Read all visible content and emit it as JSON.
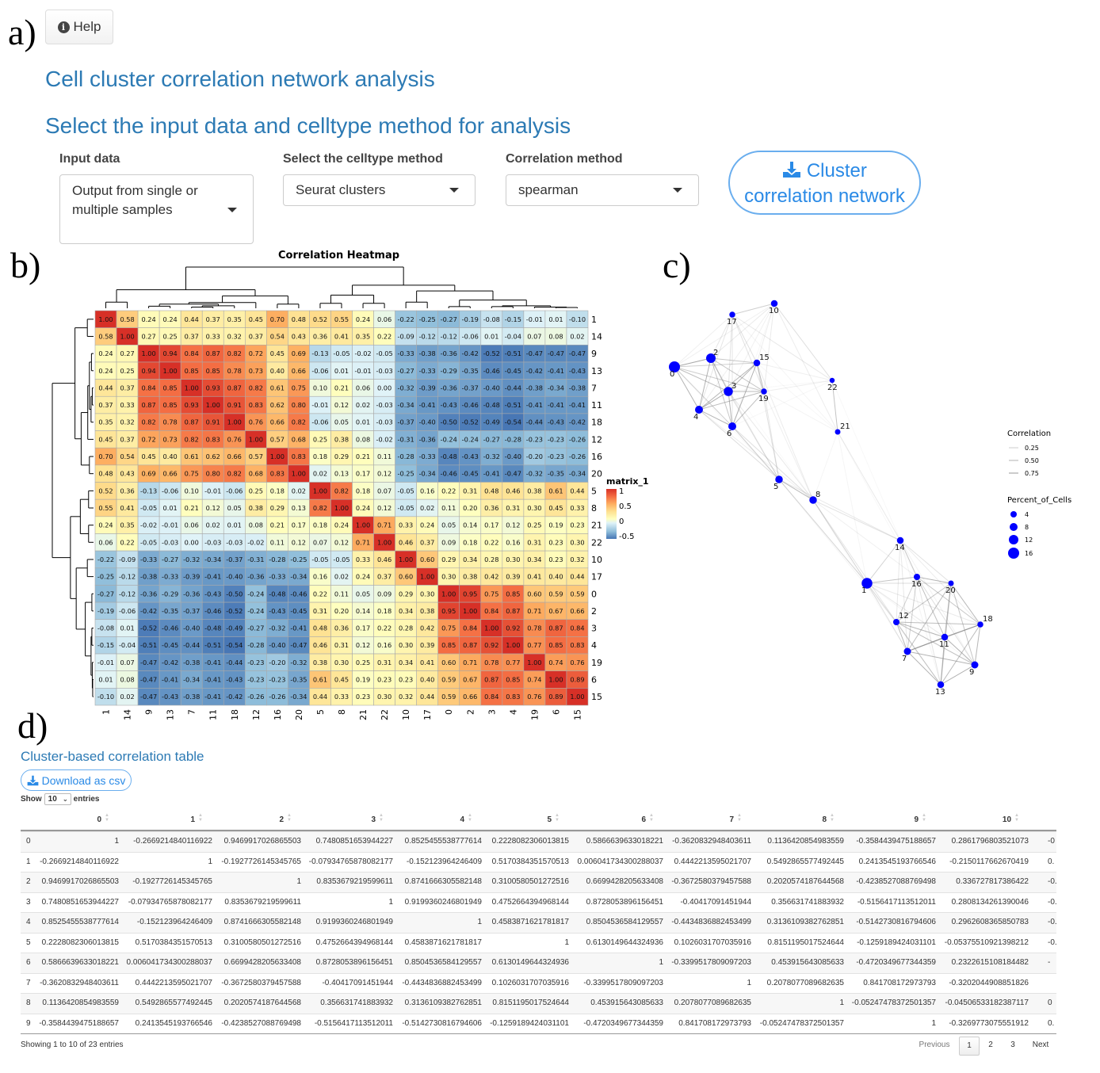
{
  "panel_labels": {
    "a": "a)",
    "b": "b)",
    "c": "c)",
    "d": "d)"
  },
  "help_button": {
    "label": "Help",
    "icon": "info-circle-icon"
  },
  "page_title": "Cell cluster correlation network analysis",
  "section_title": "Select the input data and celltype method for analysis",
  "form": {
    "input_data": {
      "label": "Input data",
      "value_line1": "Output from single or",
      "value_line2": "multiple samples"
    },
    "celltype_method": {
      "label": "Select the celltype method",
      "value": "Seurat clusters"
    },
    "correlation_method": {
      "label": "Correlation method",
      "value": "spearman"
    },
    "run_button": {
      "label_line1": "Cluster",
      "label_line2": "correlation network",
      "icon": "download-icon"
    }
  },
  "colors": {
    "accent": "#2a8ae6",
    "heading": "#2c7ab4",
    "node": "#0000ff",
    "edge": "#999999",
    "heat_high": "#d73027",
    "heat_mid": "#ffffbf",
    "heat_low": "#4575b4"
  },
  "chart_data": [
    {
      "type": "heatmap",
      "title": "Correlation Heatmap",
      "legend_title": "matrix_1",
      "legend_ticks": [
        "1",
        "0.5",
        "0",
        "-0.5"
      ],
      "color_range": [
        -0.5,
        1
      ],
      "labels": [
        "1",
        "14",
        "9",
        "13",
        "7",
        "11",
        "18",
        "12",
        "16",
        "20",
        "5",
        "8",
        "21",
        "22",
        "10",
        "17",
        "0",
        "2",
        "3",
        "4",
        "19",
        "6",
        "15"
      ],
      "values": [
        [
          1.0,
          0.58,
          0.24,
          0.24,
          0.44,
          0.37,
          0.35,
          0.45,
          0.7,
          0.48,
          0.52,
          0.55,
          0.24,
          0.06,
          -0.22,
          -0.25,
          -0.27,
          -0.19,
          -0.08,
          -0.15,
          -0.01,
          0.01,
          -0.1
        ],
        [
          0.58,
          1.0,
          0.27,
          0.25,
          0.37,
          0.33,
          0.32,
          0.37,
          0.54,
          0.43,
          0.36,
          0.41,
          0.35,
          0.22,
          -0.09,
          -0.12,
          -0.12,
          -0.06,
          0.01,
          -0.04,
          0.07,
          0.08,
          0.02
        ],
        [
          0.24,
          0.27,
          1.0,
          0.94,
          0.84,
          0.87,
          0.82,
          0.72,
          0.45,
          0.69,
          -0.13,
          -0.05,
          -0.02,
          -0.05,
          -0.33,
          -0.38,
          -0.36,
          -0.42,
          -0.52,
          -0.51,
          -0.47,
          -0.47,
          -0.47
        ],
        [
          0.24,
          0.25,
          0.94,
          1.0,
          0.85,
          0.85,
          0.78,
          0.73,
          0.4,
          0.66,
          -0.06,
          0.01,
          -0.01,
          -0.03,
          -0.27,
          -0.33,
          -0.29,
          -0.35,
          -0.46,
          -0.45,
          -0.42,
          -0.41,
          -0.43
        ],
        [
          0.44,
          0.37,
          0.84,
          0.85,
          1.0,
          0.93,
          0.87,
          0.82,
          0.61,
          0.75,
          0.1,
          0.21,
          0.06,
          -0.0,
          -0.32,
          -0.39,
          -0.36,
          -0.37,
          -0.4,
          -0.44,
          -0.38,
          -0.34,
          -0.38
        ],
        [
          0.37,
          0.33,
          0.87,
          0.85,
          0.93,
          1.0,
          0.91,
          0.83,
          0.62,
          0.8,
          -0.01,
          0.12,
          0.02,
          -0.03,
          -0.34,
          -0.41,
          -0.43,
          -0.46,
          -0.48,
          -0.51,
          -0.41,
          -0.41,
          -0.41
        ],
        [
          0.35,
          0.32,
          0.82,
          0.78,
          0.87,
          0.91,
          1.0,
          0.76,
          0.66,
          0.82,
          -0.06,
          0.05,
          0.01,
          -0.03,
          -0.37,
          -0.4,
          -0.5,
          -0.52,
          -0.49,
          -0.54,
          -0.44,
          -0.43,
          -0.42
        ],
        [
          0.45,
          0.37,
          0.72,
          0.73,
          0.82,
          0.83,
          0.76,
          1.0,
          0.57,
          0.68,
          0.25,
          0.38,
          0.08,
          -0.02,
          -0.31,
          -0.36,
          -0.24,
          -0.24,
          -0.27,
          -0.28,
          -0.23,
          -0.23,
          -0.26
        ],
        [
          0.7,
          0.54,
          0.45,
          0.4,
          0.61,
          0.62,
          0.66,
          0.57,
          1.0,
          0.83,
          0.18,
          0.29,
          0.21,
          0.11,
          -0.28,
          -0.33,
          -0.48,
          -0.43,
          -0.32,
          -0.4,
          -0.2,
          -0.23,
          -0.26
        ],
        [
          0.48,
          0.43,
          0.69,
          0.66,
          0.75,
          0.8,
          0.82,
          0.68,
          0.83,
          1.0,
          0.02,
          0.13,
          0.17,
          0.12,
          -0.25,
          -0.34,
          -0.46,
          -0.45,
          -0.41,
          -0.47,
          -0.32,
          -0.35,
          -0.34
        ],
        [
          0.52,
          0.36,
          -0.13,
          -0.06,
          0.1,
          -0.01,
          -0.06,
          0.25,
          0.18,
          0.02,
          1.0,
          0.82,
          0.18,
          0.07,
          -0.05,
          0.16,
          0.22,
          0.31,
          0.48,
          0.46,
          0.38,
          0.61,
          0.44
        ],
        [
          0.55,
          0.41,
          -0.05,
          0.01,
          0.21,
          0.12,
          0.05,
          0.38,
          0.29,
          0.13,
          0.82,
          1.0,
          0.24,
          0.12,
          -0.05,
          0.02,
          0.11,
          0.2,
          0.36,
          0.31,
          0.3,
          0.45,
          0.33
        ],
        [
          0.24,
          0.35,
          -0.02,
          -0.01,
          0.06,
          0.02,
          0.01,
          0.08,
          0.21,
          0.17,
          0.18,
          0.24,
          1.0,
          0.71,
          0.33,
          0.24,
          0.05,
          0.14,
          0.17,
          0.12,
          0.25,
          0.19,
          0.23
        ],
        [
          0.06,
          0.22,
          -0.05,
          -0.03,
          -0.0,
          -0.03,
          -0.03,
          -0.02,
          0.11,
          0.12,
          0.07,
          0.12,
          0.71,
          1.0,
          0.46,
          0.37,
          0.09,
          0.18,
          0.22,
          0.16,
          0.31,
          0.23,
          0.3
        ],
        [
          -0.22,
          -0.09,
          -0.33,
          -0.27,
          -0.32,
          -0.34,
          -0.37,
          -0.31,
          -0.28,
          -0.25,
          -0.05,
          -0.05,
          0.33,
          0.46,
          1.0,
          0.6,
          0.29,
          0.34,
          0.28,
          0.3,
          0.34,
          0.23,
          0.32
        ],
        [
          -0.25,
          -0.12,
          -0.38,
          -0.33,
          -0.39,
          -0.41,
          -0.4,
          -0.36,
          -0.33,
          -0.34,
          0.16,
          0.02,
          0.24,
          0.37,
          0.6,
          1.0,
          0.3,
          0.38,
          0.42,
          0.39,
          0.41,
          0.4,
          0.44
        ],
        [
          -0.27,
          -0.12,
          -0.36,
          -0.29,
          -0.36,
          -0.43,
          -0.5,
          -0.24,
          -0.48,
          -0.46,
          0.22,
          0.11,
          0.05,
          0.09,
          0.29,
          0.3,
          1.0,
          0.95,
          0.75,
          0.85,
          0.6,
          0.59,
          0.59
        ],
        [
          -0.19,
          -0.06,
          -0.42,
          -0.35,
          -0.37,
          -0.46,
          -0.52,
          -0.24,
          -0.43,
          -0.45,
          0.31,
          0.2,
          0.14,
          0.18,
          0.34,
          0.38,
          0.95,
          1.0,
          0.84,
          0.87,
          0.71,
          0.67,
          0.66
        ],
        [
          -0.08,
          0.01,
          -0.52,
          -0.46,
          -0.4,
          -0.48,
          -0.49,
          -0.27,
          -0.32,
          -0.41,
          0.48,
          0.36,
          0.17,
          0.22,
          0.28,
          0.42,
          0.75,
          0.84,
          1.0,
          0.92,
          0.78,
          0.87,
          0.84
        ],
        [
          -0.15,
          -0.04,
          -0.51,
          -0.45,
          -0.44,
          -0.51,
          -0.54,
          -0.28,
          -0.4,
          -0.47,
          0.46,
          0.31,
          0.12,
          0.16,
          0.3,
          0.39,
          0.85,
          0.87,
          0.92,
          1.0,
          0.77,
          0.85,
          0.83
        ],
        [
          -0.01,
          0.07,
          -0.47,
          -0.42,
          -0.38,
          -0.41,
          -0.44,
          -0.23,
          -0.2,
          -0.32,
          0.38,
          0.3,
          0.25,
          0.31,
          0.34,
          0.41,
          0.6,
          0.71,
          0.78,
          0.77,
          1.0,
          0.74,
          0.76
        ],
        [
          0.01,
          0.08,
          -0.47,
          -0.41,
          -0.34,
          -0.41,
          -0.43,
          -0.23,
          -0.23,
          -0.35,
          0.61,
          0.45,
          0.19,
          0.23,
          0.23,
          0.4,
          0.59,
          0.67,
          0.87,
          0.85,
          0.74,
          1.0,
          0.89
        ],
        [
          -0.1,
          0.02,
          -0.47,
          -0.43,
          -0.38,
          -0.41,
          -0.42,
          -0.26,
          -0.26,
          -0.34,
          0.44,
          0.33,
          0.23,
          0.3,
          0.32,
          0.44,
          0.59,
          0.66,
          0.84,
          0.83,
          0.76,
          0.89,
          1.0
        ]
      ]
    },
    {
      "type": "network",
      "legend": {
        "correlation_title": "Correlation",
        "correlation_levels": [
          "0.25",
          "0.50",
          "0.75"
        ],
        "size_title": "Percent_of_Cells",
        "size_levels": [
          "4",
          "8",
          "12",
          "16"
        ]
      },
      "nodes": [
        {
          "id": "0",
          "percent_of_cells": 16
        },
        {
          "id": "1",
          "percent_of_cells": 15
        },
        {
          "id": "2",
          "percent_of_cells": 12
        },
        {
          "id": "3",
          "percent_of_cells": 11
        },
        {
          "id": "4",
          "percent_of_cells": 8
        },
        {
          "id": "5",
          "percent_of_cells": 7
        },
        {
          "id": "6",
          "percent_of_cells": 8
        },
        {
          "id": "7",
          "percent_of_cells": 6
        },
        {
          "id": "8",
          "percent_of_cells": 7
        },
        {
          "id": "9",
          "percent_of_cells": 6
        },
        {
          "id": "10",
          "percent_of_cells": 5
        },
        {
          "id": "11",
          "percent_of_cells": 5
        },
        {
          "id": "12",
          "percent_of_cells": 4
        },
        {
          "id": "13",
          "percent_of_cells": 5
        },
        {
          "id": "14",
          "percent_of_cells": 5
        },
        {
          "id": "15",
          "percent_of_cells": 5
        },
        {
          "id": "16",
          "percent_of_cells": 4
        },
        {
          "id": "17",
          "percent_of_cells": 3
        },
        {
          "id": "18",
          "percent_of_cells": 3
        },
        {
          "id": "19",
          "percent_of_cells": 3
        },
        {
          "id": "20",
          "percent_of_cells": 2
        },
        {
          "id": "21",
          "percent_of_cells": 2
        },
        {
          "id": "22",
          "percent_of_cells": 1
        }
      ]
    }
  ],
  "table": {
    "title": "Cluster-based correlation table",
    "download_label": "Download as csv",
    "download_icon": "download-icon",
    "show_label": "Show",
    "page_length": "10",
    "entries_label": "entries",
    "columns": [
      "0",
      "1",
      "2",
      "3",
      "4",
      "5",
      "6",
      "7",
      "8",
      "9",
      "10"
    ],
    "rows": [
      {
        "index": "0",
        "values": [
          "1",
          "-0.2669214840116922",
          "0.9469917026865503",
          "0.7480851653944227",
          "0.8525455538777614",
          "0.2228082306013815",
          "0.5866639633018221",
          "-0.3620832948403611",
          "0.1136420854983559",
          "-0.3584439475188657",
          "0.2861796803521073"
        ],
        "next_col_partial": "-0"
      },
      {
        "index": "1",
        "values": [
          "-0.2669214840116922",
          "1",
          "-0.1927726145345765",
          "-0.07934765878082177",
          "-0.152123964246409",
          "0.5170384351570513",
          "0.006041734300288037",
          "0.4442213595021707",
          "0.5492865577492445",
          "0.2413545193766546",
          "-0.2150117662670419"
        ],
        "next_col_partial": "0."
      },
      {
        "index": "2",
        "values": [
          "0.9469917026865503",
          "-0.1927726145345765",
          "1",
          "0.8353679219599611",
          "0.8741666305582148",
          "0.3100580501272516",
          "0.6699428205633408",
          "-0.3672580379457588",
          "0.2020574187644568",
          "-0.4238527088769498",
          "0.336727817386422"
        ],
        "next_col_partial": "-0."
      },
      {
        "index": "3",
        "values": [
          "0.7480851653944227",
          "-0.07934765878082177",
          "0.8353679219599611",
          "1",
          "0.9199360246801949",
          "0.4752664394968144",
          "0.8728053896156451",
          "-0.40417091451944",
          "0.356631741883932",
          "-0.5156417113512011",
          "0.2808134261390046"
        ],
        "next_col_partial": "-0."
      },
      {
        "index": "4",
        "values": [
          "0.8525455538777614",
          "-0.152123964246409",
          "0.8741666305582148",
          "0.9199360246801949",
          "1",
          "0.4583871621781817",
          "0.8504536584129557",
          "-0.4434836882453499",
          "0.3136109382762851",
          "-0.5142730816794606",
          "0.2962608365850783"
        ],
        "next_col_partial": "-0."
      },
      {
        "index": "5",
        "values": [
          "0.2228082306013815",
          "0.5170384351570513",
          "0.3100580501272516",
          "0.4752664394968144",
          "0.4583871621781817",
          "1",
          "0.6130149644324936",
          "0.1026031707035916",
          "0.8151195017524644",
          "-0.1259189424031101",
          "-0.05375510921398212"
        ],
        "next_col_partial": "-0.00"
      },
      {
        "index": "6",
        "values": [
          "0.5866639633018221",
          "0.006041734300288037",
          "0.6699428205633408",
          "0.8728053896156451",
          "0.8504536584129557",
          "0.6130149644324936",
          "1",
          "-0.3399517809097203",
          "0.453915643085633",
          "-0.4720349677344359",
          "0.2322615108184482"
        ],
        "next_col_partial": "-"
      },
      {
        "index": "7",
        "values": [
          "-0.3620832948403611",
          "0.4442213595021707",
          "-0.3672580379457588",
          "-0.40417091451944",
          "-0.4434836882453499",
          "0.1026031707035916",
          "-0.3399517809097203",
          "1",
          "0.2078077089682635",
          "0.841708172973793",
          "-0.3202044908851826"
        ],
        "next_col_partial": ""
      },
      {
        "index": "8",
        "values": [
          "0.1136420854983559",
          "0.5492865577492445",
          "0.2020574187644568",
          "0.356631741883932",
          "0.3136109382762851",
          "0.8151195017524644",
          "0.453915643085633",
          "0.2078077089682635",
          "1",
          "-0.05247478372501357",
          "-0.04506533182387117"
        ],
        "next_col_partial": "0"
      },
      {
        "index": "9",
        "values": [
          "-0.3584439475188657",
          "0.2413545193766546",
          "-0.4238527088769498",
          "-0.5156417113512011",
          "-0.5142730816794606",
          "-0.1259189424031101",
          "-0.4720349677344359",
          "0.841708172973793",
          "-0.05247478372501357",
          "1",
          "-0.3269773075551912"
        ],
        "next_col_partial": "0."
      }
    ],
    "info": "Showing 1 to 10 of 23 entries",
    "pagination": {
      "previous": "Previous",
      "pages": [
        "1",
        "2",
        "3"
      ],
      "current": "1",
      "next": "Next"
    }
  }
}
